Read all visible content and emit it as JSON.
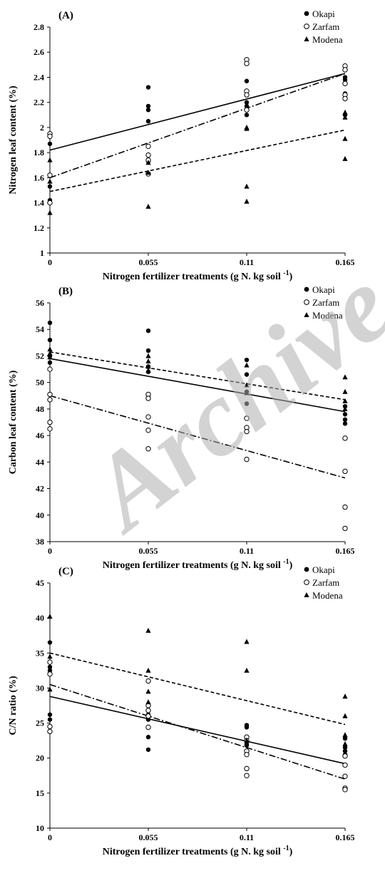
{
  "watermark_text": "Archive",
  "chart_data": [
    {
      "type": "scatter",
      "panel_label": "(A)",
      "xlabel": "Nitrogen fertilizer treatments (g N. kg soil -1)",
      "ylabel": "Nitrogen leaf content (%)",
      "xlim": [
        0,
        0.165
      ],
      "ylim": [
        1,
        2.8
      ],
      "x_ticks": [
        "0",
        "0.055",
        "0.11",
        "0.165"
      ],
      "y_ticks": [
        "1",
        "1.2",
        "1.4",
        "1.6",
        "1.8",
        "2",
        "2.2",
        "2.4",
        "2.6",
        "2.8"
      ],
      "legend": "top-right",
      "grid": false,
      "series": [
        {
          "name": "Okapi",
          "marker": "filled-circle",
          "points": [
            [
              0,
              1.87
            ],
            [
              0,
              1.62
            ],
            [
              0,
              1.53
            ],
            [
              0,
              1.42
            ],
            [
              0.055,
              2.32
            ],
            [
              0.055,
              2.17
            ],
            [
              0.055,
              2.14
            ],
            [
              0.055,
              2.05
            ],
            [
              0.055,
              1.73
            ],
            [
              0.11,
              2.37
            ],
            [
              0.11,
              2.2
            ],
            [
              0.11,
              2.17
            ],
            [
              0.11,
              2.1
            ],
            [
              0.165,
              2.4
            ],
            [
              0.165,
              2.38
            ],
            [
              0.165,
              2.27
            ],
            [
              0.165,
              2.1
            ]
          ],
          "trend": [
            [
              0,
              1.82
            ],
            [
              0.165,
              2.43
            ]
          ],
          "trend_style": "solid"
        },
        {
          "name": "Zarfam",
          "marker": "open-circle",
          "points": [
            [
              0,
              1.95
            ],
            [
              0,
              1.93
            ],
            [
              0,
              1.62
            ],
            [
              0,
              1.4
            ],
            [
              0.055,
              1.85
            ],
            [
              0.055,
              1.78
            ],
            [
              0.055,
              1.74
            ],
            [
              0.055,
              1.63
            ],
            [
              0.11,
              2.54
            ],
            [
              0.11,
              2.51
            ],
            [
              0.11,
              2.29
            ],
            [
              0.11,
              2.26
            ],
            [
              0.11,
              2.14
            ],
            [
              0.165,
              2.49
            ],
            [
              0.165,
              2.46
            ],
            [
              0.165,
              2.35
            ],
            [
              0.165,
              2.26
            ],
            [
              0.165,
              2.23
            ]
          ],
          "trend": [
            [
              0,
              1.6
            ],
            [
              0.165,
              2.43
            ]
          ],
          "trend_style": "dash-dot"
        },
        {
          "name": "Modena",
          "marker": "filled-triangle",
          "points": [
            [
              0,
              1.74
            ],
            [
              0,
              1.57
            ],
            [
              0,
              1.32
            ],
            [
              0.055,
              1.72
            ],
            [
              0.055,
              1.64
            ],
            [
              0.055,
              1.37
            ],
            [
              0.11,
              2.0
            ],
            [
              0.11,
              1.99
            ],
            [
              0.11,
              1.53
            ],
            [
              0.11,
              1.41
            ],
            [
              0.165,
              2.12
            ],
            [
              0.165,
              2.08
            ],
            [
              0.165,
              1.91
            ],
            [
              0.165,
              1.75
            ]
          ],
          "trend": [
            [
              0,
              1.49
            ],
            [
              0.165,
              1.98
            ]
          ],
          "trend_style": "dashed"
        }
      ]
    },
    {
      "type": "scatter",
      "panel_label": "(B)",
      "xlabel": "Nitrogen fertilizer treatments (g N. kg soil -1)",
      "ylabel": "Carbon leaf content (%)",
      "xlim": [
        0,
        0.165
      ],
      "ylim": [
        38,
        56
      ],
      "x_ticks": [
        "0",
        "0.055",
        "0.11",
        "0.165"
      ],
      "y_ticks": [
        "38",
        "40",
        "42",
        "44",
        "46",
        "48",
        "50",
        "52",
        "54",
        "56"
      ],
      "legend": "top-right",
      "grid": false,
      "series": [
        {
          "name": "Okapi",
          "marker": "filled-circle",
          "points": [
            [
              0,
              54.5
            ],
            [
              0,
              53.2
            ],
            [
              0,
              52.0
            ],
            [
              0,
              51.5
            ],
            [
              0.055,
              53.9
            ],
            [
              0.055,
              52.4
            ],
            [
              0.055,
              51.2
            ],
            [
              0.055,
              50.8
            ],
            [
              0.055,
              49.0
            ],
            [
              0.11,
              51.7
            ],
            [
              0.11,
              50.6
            ],
            [
              0.11,
              49.3
            ],
            [
              0.11,
              48.4
            ],
            [
              0.165,
              48.2
            ],
            [
              0.165,
              47.6
            ],
            [
              0.165,
              47.2
            ],
            [
              0.165,
              46.9
            ]
          ],
          "trend": [
            [
              0,
              51.8
            ],
            [
              0.165,
              47.8
            ]
          ],
          "trend_style": "solid"
        },
        {
          "name": "Zarfam",
          "marker": "open-circle",
          "points": [
            [
              0,
              51.0
            ],
            [
              0,
              49.1
            ],
            [
              0,
              48.7
            ],
            [
              0,
              47.0
            ],
            [
              0,
              46.5
            ],
            [
              0.055,
              49.1
            ],
            [
              0.055,
              48.8
            ],
            [
              0.055,
              47.4
            ],
            [
              0.055,
              46.4
            ],
            [
              0.055,
              45.0
            ],
            [
              0.11,
              47.3
            ],
            [
              0.11,
              46.6
            ],
            [
              0.11,
              46.3
            ],
            [
              0.11,
              44.2
            ],
            [
              0.165,
              45.8
            ],
            [
              0.165,
              43.3
            ],
            [
              0.165,
              40.6
            ],
            [
              0.165,
              39.0
            ]
          ],
          "trend": [
            [
              0,
              49.0
            ],
            [
              0.165,
              42.8
            ]
          ],
          "trend_style": "dash-dot"
        },
        {
          "name": "Modena",
          "marker": "filled-triangle",
          "points": [
            [
              0,
              52.5
            ],
            [
              0,
              52.2
            ],
            [
              0,
              51.9
            ],
            [
              0.055,
              52.0
            ],
            [
              0.055,
              51.6
            ],
            [
              0.055,
              51.2
            ],
            [
              0.055,
              50.9
            ],
            [
              0.11,
              51.3
            ],
            [
              0.11,
              49.8
            ],
            [
              0.11,
              49.2
            ],
            [
              0.165,
              50.4
            ],
            [
              0.165,
              49.3
            ],
            [
              0.165,
              48.6
            ],
            [
              0.165,
              48.0
            ]
          ],
          "trend": [
            [
              0,
              52.3
            ],
            [
              0.165,
              48.7
            ]
          ],
          "trend_style": "dashed"
        }
      ]
    },
    {
      "type": "scatter",
      "panel_label": "(C)",
      "xlabel": "Nitrogen fertilizer treatments (g N. kg soil -1)",
      "ylabel": "C/N ratio (%)",
      "xlim": [
        0,
        0.165
      ],
      "ylim": [
        10,
        45
      ],
      "x_ticks": [
        "0",
        "0.055",
        "0.11",
        "0.165"
      ],
      "y_ticks": [
        "10",
        "15",
        "20",
        "25",
        "30",
        "35",
        "40",
        "45"
      ],
      "legend": "top-right",
      "grid": false,
      "series": [
        {
          "name": "Okapi",
          "marker": "filled-circle",
          "points": [
            [
              0,
              36.5
            ],
            [
              0,
              33.0
            ],
            [
              0,
              32.5
            ],
            [
              0,
              26.2
            ],
            [
              0,
              25.5
            ],
            [
              0.055,
              26.2
            ],
            [
              0.055,
              25.5
            ],
            [
              0.055,
              23.0
            ],
            [
              0.055,
              21.2
            ],
            [
              0.11,
              24.7
            ],
            [
              0.11,
              24.4
            ],
            [
              0.11,
              22.0
            ],
            [
              0.11,
              21.8
            ],
            [
              0.165,
              22.8
            ],
            [
              0.165,
              21.5
            ],
            [
              0.165,
              21.0
            ],
            [
              0.165,
              20.5
            ]
          ],
          "trend": [
            [
              0,
              28.8
            ],
            [
              0.165,
              19.2
            ]
          ],
          "trend_style": "solid"
        },
        {
          "name": "Zarfam",
          "marker": "open-circle",
          "points": [
            [
              0,
              33.7
            ],
            [
              0,
              32.0
            ],
            [
              0,
              24.5
            ],
            [
              0,
              23.8
            ],
            [
              0.055,
              31.0
            ],
            [
              0.055,
              27.5
            ],
            [
              0.055,
              26.8
            ],
            [
              0.055,
              26.0
            ],
            [
              0.055,
              24.4
            ],
            [
              0.11,
              23.0
            ],
            [
              0.11,
              22.5
            ],
            [
              0.11,
              21.0
            ],
            [
              0.11,
              20.5
            ],
            [
              0.11,
              18.5
            ],
            [
              0.11,
              17.5
            ],
            [
              0.165,
              20.3
            ],
            [
              0.165,
              19.0
            ],
            [
              0.165,
              17.4
            ],
            [
              0.165,
              15.7
            ],
            [
              0.165,
              15.5
            ]
          ],
          "trend": [
            [
              0,
              30.5
            ],
            [
              0.165,
              17.0
            ]
          ],
          "trend_style": "dash-dot"
        },
        {
          "name": "Modena",
          "marker": "filled-triangle",
          "points": [
            [
              0,
              40.2
            ],
            [
              0,
              34.5
            ],
            [
              0,
              29.8
            ],
            [
              0.055,
              38.2
            ],
            [
              0.055,
              32.5
            ],
            [
              0.055,
              29.5
            ],
            [
              0.055,
              28.0
            ],
            [
              0.11,
              36.6
            ],
            [
              0.11,
              32.5
            ],
            [
              0.11,
              22.5
            ],
            [
              0.165,
              28.8
            ],
            [
              0.165,
              26.0
            ],
            [
              0.165,
              23.3
            ],
            [
              0.165,
              22.0
            ]
          ],
          "trend": [
            [
              0,
              35.0
            ],
            [
              0.165,
              24.8
            ]
          ],
          "trend_style": "dashed"
        }
      ]
    }
  ]
}
